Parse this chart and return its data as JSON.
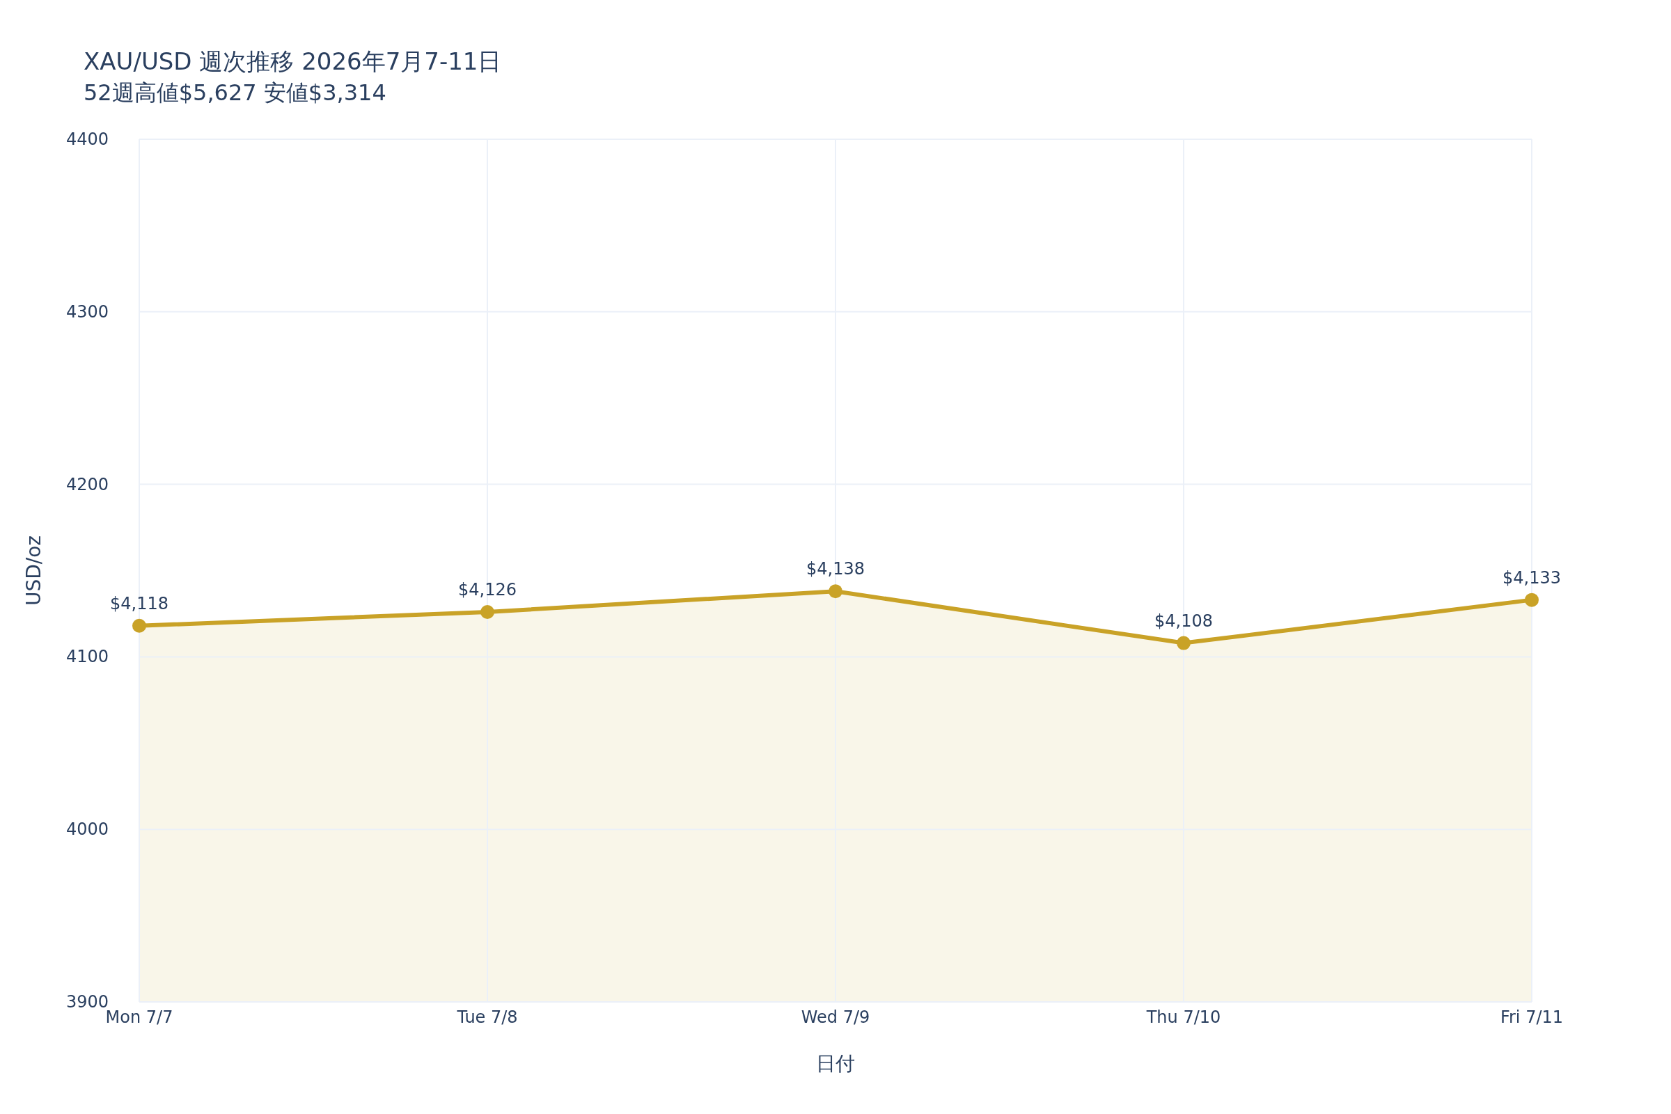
{
  "chart_data": {
    "type": "area",
    "title": "XAU/USD 週次推移 2026年7月7-11日",
    "subtitle": "52週高値$5,627 安値$3,314",
    "xlabel": "日付",
    "ylabel": "USD/oz",
    "categories": [
      "Mon 7/7",
      "Tue 7/8",
      "Wed 7/9",
      "Thu 7/10",
      "Fri 7/11"
    ],
    "series": [
      {
        "color": "#c9a227",
        "values": [
          4118,
          4126,
          4138,
          4108,
          4133
        ],
        "value_labels": [
          "$4,118",
          "$4,126",
          "$4,138",
          "$4,108",
          "$4,133"
        ]
      }
    ],
    "ylim": [
      3900,
      4400
    ],
    "yticks": [
      3900,
      4000,
      4100,
      4200,
      4300,
      4400
    ],
    "marker": "circle",
    "grid": true
  }
}
